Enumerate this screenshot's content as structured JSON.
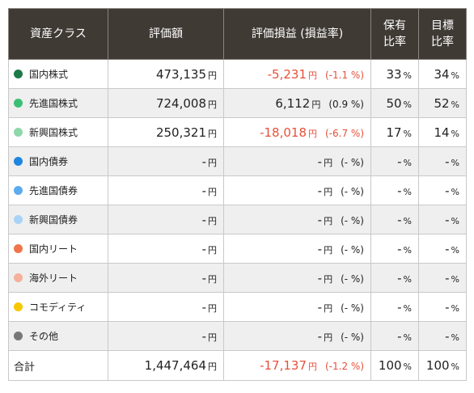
{
  "header": {
    "asset_class": "資産クラス",
    "valuation": "評価額",
    "pl": "評価損益 (損益率)",
    "holding_ratio_1": "保有",
    "holding_ratio_2": "比率",
    "target_ratio_1": "目標",
    "target_ratio_2": "比率"
  },
  "units": {
    "yen": "円",
    "percent": "%"
  },
  "rows": [
    {
      "name": "国内株式",
      "color": "#1e7a48",
      "value": "473,135",
      "pl": "-5,231",
      "rate": "(-1.1 %)",
      "negative": true,
      "hold": "33",
      "target": "34"
    },
    {
      "name": "先進国株式",
      "color": "#3cbf74",
      "value": "724,008",
      "pl": "6,112",
      "rate": "(0.9 %)",
      "negative": false,
      "hold": "50",
      "target": "52"
    },
    {
      "name": "新興国株式",
      "color": "#8ed7a8",
      "value": "250,321",
      "pl": "-18,018",
      "rate": "(-6.7 %)",
      "negative": true,
      "hold": "17",
      "target": "14"
    },
    {
      "name": "国内債券",
      "color": "#1f86e0",
      "value": "-",
      "pl": "-",
      "rate": "(- %)",
      "negative": false,
      "hold": "-",
      "target": "-"
    },
    {
      "name": "先進国債券",
      "color": "#5cabee",
      "value": "-",
      "pl": "-",
      "rate": "(- %)",
      "negative": false,
      "hold": "-",
      "target": "-"
    },
    {
      "name": "新興国債券",
      "color": "#a9d3f6",
      "value": "-",
      "pl": "-",
      "rate": "(- %)",
      "negative": false,
      "hold": "-",
      "target": "-"
    },
    {
      "name": "国内リート",
      "color": "#f0744c",
      "value": "-",
      "pl": "-",
      "rate": "(- %)",
      "negative": false,
      "hold": "-",
      "target": "-"
    },
    {
      "name": "海外リート",
      "color": "#f5b19b",
      "value": "-",
      "pl": "-",
      "rate": "(- %)",
      "negative": false,
      "hold": "-",
      "target": "-"
    },
    {
      "name": "コモディティ",
      "color": "#f6c800",
      "value": "-",
      "pl": "-",
      "rate": "(- %)",
      "negative": false,
      "hold": "-",
      "target": "-"
    },
    {
      "name": "その他",
      "color": "#777777",
      "value": "-",
      "pl": "-",
      "rate": "(- %)",
      "negative": false,
      "hold": "-",
      "target": "-"
    }
  ],
  "total": {
    "label": "合計",
    "value": "1,447,464",
    "pl": "-17,137",
    "rate": "(-1.2 %)",
    "negative": true,
    "hold": "100",
    "target": "100"
  }
}
